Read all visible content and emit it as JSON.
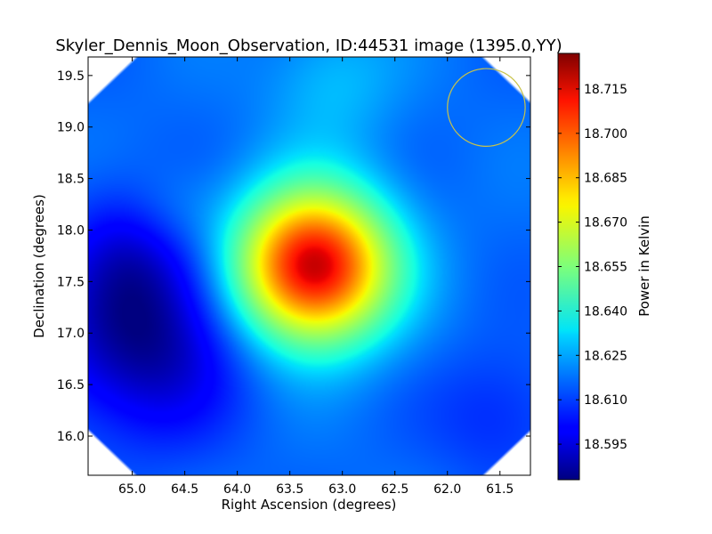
{
  "chart_data": {
    "type": "heatmap",
    "title": "Skyler_Dennis_Moon_Observation, ID:44531 image (1395.0,YY)",
    "xlabel": "Right Ascension (degrees)",
    "ylabel": "Declination (degrees)",
    "xlim": [
      65.42,
      61.21
    ],
    "ylim": [
      15.62,
      19.68
    ],
    "x_ticks": [
      65.0,
      64.5,
      64.0,
      63.5,
      63.0,
      62.5,
      62.0,
      61.5
    ],
    "x_tick_labels": [
      "65.0",
      "64.5",
      "64.0",
      "63.5",
      "63.0",
      "62.5",
      "62.0",
      "61.5"
    ],
    "y_ticks": [
      16.0,
      16.5,
      17.0,
      17.5,
      18.0,
      18.5,
      19.0,
      19.5
    ],
    "y_tick_labels": [
      "16.0",
      "16.5",
      "17.0",
      "17.5",
      "18.0",
      "18.5",
      "19.0",
      "19.5"
    ],
    "colormap": "jet",
    "grid": false,
    "colorbar": {
      "label": "Power in Kelvin",
      "range": [
        18.583,
        18.727
      ],
      "ticks": [
        18.595,
        18.61,
        18.625,
        18.64,
        18.655,
        18.67,
        18.685,
        18.7,
        18.715
      ],
      "tick_labels": [
        "18.595",
        "18.610",
        "18.625",
        "18.640",
        "18.655",
        "18.670",
        "18.685",
        "18.700",
        "18.715"
      ]
    },
    "background_level": 18.616,
    "features": [
      {
        "kind": "peak",
        "ra": 63.28,
        "dec": 17.65,
        "value": 18.721,
        "sigma_deg": 0.52
      },
      {
        "kind": "trough",
        "ra": 64.9,
        "dec": 16.95,
        "value": 18.585,
        "sigma_deg": 0.65
      },
      {
        "kind": "low",
        "ra": 64.9,
        "dec": 17.9,
        "value": 18.6,
        "sigma_deg": 0.45
      },
      {
        "kind": "low",
        "ra": 61.5,
        "dec": 16.2,
        "value": 18.606,
        "sigma_deg": 0.45
      },
      {
        "kind": "high",
        "ra": 64.65,
        "dec": 18.15,
        "value": 18.628,
        "sigma_deg": 0.35
      },
      {
        "kind": "high",
        "ra": 63.1,
        "dec": 19.45,
        "value": 18.628,
        "sigma_deg": 0.45
      }
    ],
    "beam_marker": {
      "shape": "circle",
      "ra": 61.63,
      "dec": 19.19,
      "radius_deg": 0.37,
      "color": "#c8c34a"
    }
  }
}
